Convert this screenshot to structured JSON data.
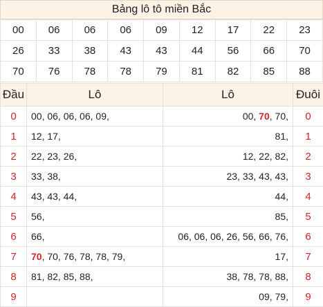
{
  "title": "Bảng lô tô miền Bắc",
  "numbers": [
    [
      "00",
      "06",
      "06",
      "06",
      "09",
      "12",
      "17",
      "22",
      "23"
    ],
    [
      "26",
      "33",
      "38",
      "43",
      "43",
      "44",
      "56",
      "66",
      "70"
    ],
    [
      "70",
      "76",
      "78",
      "78",
      "79",
      "81",
      "82",
      "85",
      "88"
    ]
  ],
  "highlight_number": "70",
  "headers": {
    "dau": "Đầu",
    "lo_left": "Lô",
    "lo_right": "Lô",
    "duoi": "Đuôi"
  },
  "rows": [
    {
      "dau": "0",
      "left": "00, 06, 06, 06, 09,",
      "right": "00, 70, 70,",
      "duoi": "0"
    },
    {
      "dau": "1",
      "left": "12, 17,",
      "right": "81,",
      "duoi": "1"
    },
    {
      "dau": "2",
      "left": "22, 23, 26,",
      "right": "12, 22, 82,",
      "duoi": "2"
    },
    {
      "dau": "3",
      "left": "33, 38,",
      "right": "23, 33, 43, 43,",
      "duoi": "3"
    },
    {
      "dau": "4",
      "left": "43, 43, 44,",
      "right": "44,",
      "duoi": "4"
    },
    {
      "dau": "5",
      "left": "56,",
      "right": "85,",
      "duoi": "5"
    },
    {
      "dau": "6",
      "left": "66,",
      "right": "06, 06, 06, 26, 56, 66, 76,",
      "duoi": "6"
    },
    {
      "dau": "7",
      "left": "70, 70, 76, 78, 78, 79,",
      "right": "17,",
      "duoi": "7"
    },
    {
      "dau": "8",
      "left": "81, 82, 85, 88,",
      "right": "38, 78, 78, 88,",
      "duoi": "8"
    },
    {
      "dau": "9",
      "left": "",
      "right": "09, 79,",
      "duoi": "9"
    }
  ],
  "colors": {
    "accent": "#d0242c",
    "header_bg": "#fdf2e6",
    "border": "#e8e0d8"
  }
}
